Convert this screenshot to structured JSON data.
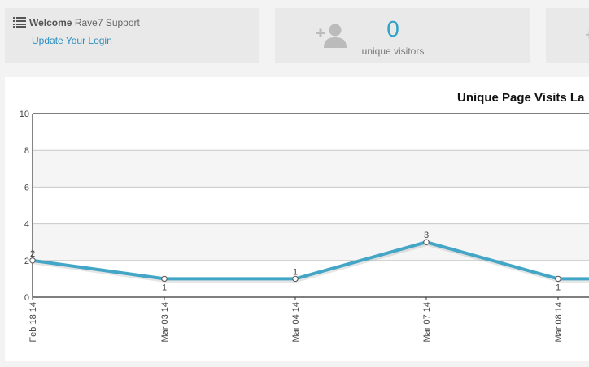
{
  "welcome": {
    "greeting": "Welcome",
    "name": "Rave7 Support",
    "link": "Update Your Login",
    "icon": "list-icon"
  },
  "visitors": {
    "count": "0",
    "label": "unique visitors",
    "icon": "add-user-icon"
  },
  "third_card": {
    "icon": "plus-icon"
  },
  "colors": {
    "accent": "#2fa2c8",
    "line": "#44a6c6",
    "link": "#2a8ec0",
    "card_bg": "#e9e9e9"
  },
  "chart_data": {
    "type": "line",
    "title": "Unique Page Visits La",
    "categories": [
      "Feb 18 14",
      "Mar 03 14",
      "Mar 04 14",
      "Mar 07 14",
      "Mar 08 14"
    ],
    "series": [
      {
        "values": [
          2,
          1,
          1,
          3,
          1
        ]
      }
    ],
    "ylim": [
      0,
      10
    ],
    "yticks": [
      0,
      2,
      4,
      6,
      8,
      10
    ],
    "grid": true
  }
}
